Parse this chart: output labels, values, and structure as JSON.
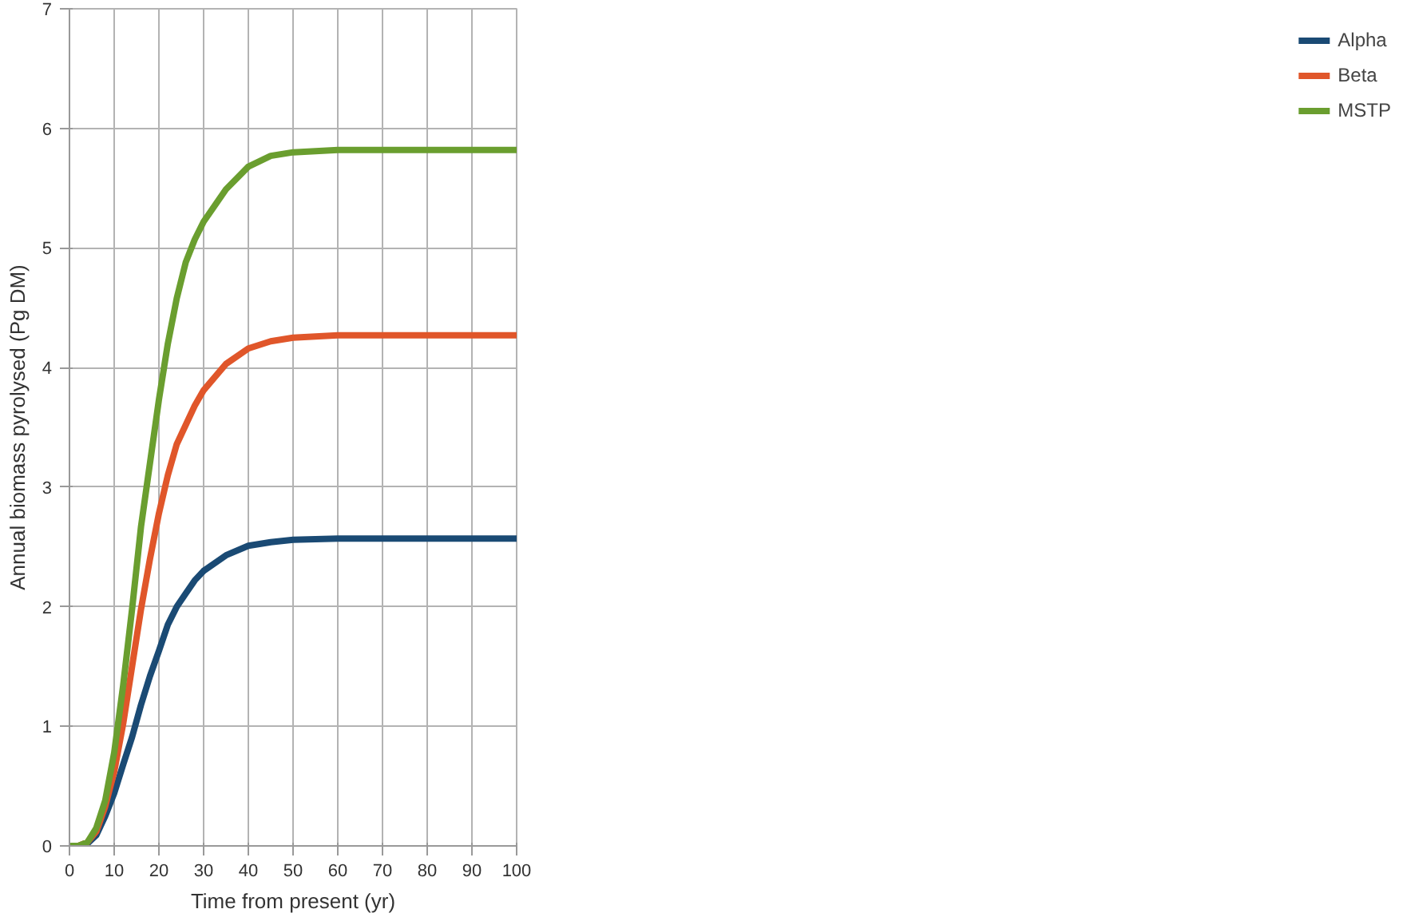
{
  "chart_data": {
    "type": "line",
    "xlabel": "Time from present (yr)",
    "ylabel": "Annual biomass pyrolysed (Pg DM)",
    "x": [
      0,
      2,
      4,
      6,
      8,
      10,
      12,
      14,
      16,
      18,
      20,
      22,
      24,
      26,
      28,
      30,
      35,
      40,
      45,
      50,
      60,
      70,
      80,
      90,
      100
    ],
    "series": [
      {
        "name": "Alpha",
        "color": "#1a4a74",
        "values": [
          0,
          0,
          0.02,
          0.09,
          0.25,
          0.44,
          0.68,
          0.91,
          1.18,
          1.42,
          1.63,
          1.85,
          2.0,
          2.11,
          2.22,
          2.3,
          2.43,
          2.51,
          2.54,
          2.56,
          2.57,
          2.57,
          2.57,
          2.57,
          2.57
        ]
      },
      {
        "name": "Beta",
        "color": "#e0562a",
        "values": [
          0,
          0,
          0.03,
          0.12,
          0.33,
          0.62,
          1.02,
          1.5,
          1.98,
          2.4,
          2.78,
          3.1,
          3.36,
          3.52,
          3.68,
          3.81,
          4.03,
          4.16,
          4.22,
          4.25,
          4.27,
          4.27,
          4.27,
          4.27,
          4.27
        ]
      },
      {
        "name": "MSTP",
        "color": "#6a9e2f",
        "values": [
          0,
          0,
          0.03,
          0.15,
          0.38,
          0.78,
          1.34,
          1.98,
          2.67,
          3.2,
          3.73,
          4.2,
          4.58,
          4.88,
          5.07,
          5.22,
          5.49,
          5.68,
          5.77,
          5.8,
          5.82,
          5.82,
          5.82,
          5.82,
          5.82
        ]
      }
    ],
    "xlim": [
      0,
      100
    ],
    "xticks": [
      0,
      10,
      20,
      30,
      40,
      50,
      60,
      70,
      80,
      90,
      100
    ],
    "ylim": [
      0,
      7
    ],
    "yticks": [
      0,
      1,
      2,
      3,
      4,
      5,
      6,
      7
    ],
    "grid": true,
    "legend": "right",
    "marker": "none",
    "line_style": "solid"
  }
}
